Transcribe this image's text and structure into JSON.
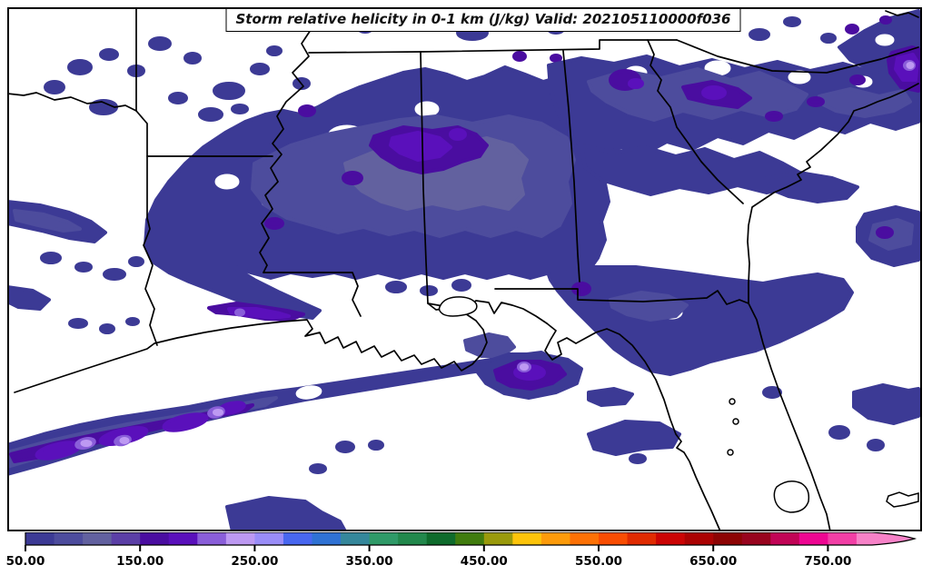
{
  "title": "Storm relative helicity in 0-1 km (J/kg) Valid: 202105110000f036",
  "colorbar": {
    "vmin": 50,
    "step": 25,
    "extend_max": true,
    "arrow_color": "#f782c8",
    "segments": [
      {
        "value": 50,
        "color": "#3c3a95"
      },
      {
        "value": 75,
        "color": "#4d4c9d"
      },
      {
        "value": 100,
        "color": "#62619f"
      },
      {
        "value": 125,
        "color": "#5b3fa6"
      },
      {
        "value": 150,
        "color": "#4a0da0"
      },
      {
        "value": 175,
        "color": "#5a10bb"
      },
      {
        "value": 200,
        "color": "#8a5ed9"
      },
      {
        "value": 225,
        "color": "#bd99f2"
      },
      {
        "value": 250,
        "color": "#9a8df8"
      },
      {
        "value": 275,
        "color": "#4867f0"
      },
      {
        "value": 300,
        "color": "#2f72d4"
      },
      {
        "value": 325,
        "color": "#35879b"
      },
      {
        "value": 350,
        "color": "#2f9a68"
      },
      {
        "value": 375,
        "color": "#22884c"
      },
      {
        "value": 400,
        "color": "#0e6b2c"
      },
      {
        "value": 425,
        "color": "#407c0e"
      },
      {
        "value": 450,
        "color": "#9a9a0c"
      },
      {
        "value": 475,
        "color": "#fdc40b"
      },
      {
        "value": 500,
        "color": "#fd9b0b"
      },
      {
        "value": 525,
        "color": "#fd7105"
      },
      {
        "value": 550,
        "color": "#f94d02"
      },
      {
        "value": 575,
        "color": "#e02b01"
      },
      {
        "value": 600,
        "color": "#cb0404"
      },
      {
        "value": 625,
        "color": "#ab0303"
      },
      {
        "value": 650,
        "color": "#8d0404"
      },
      {
        "value": 675,
        "color": "#98041e"
      },
      {
        "value": 700,
        "color": "#c10456"
      },
      {
        "value": 725,
        "color": "#ee0692"
      },
      {
        "value": 750,
        "color": "#f23fa6"
      }
    ],
    "ticks": [
      {
        "value": 50,
        "label": "50.00"
      },
      {
        "value": 150,
        "label": "150.00"
      },
      {
        "value": 250,
        "label": "250.00"
      },
      {
        "value": 350,
        "label": "350.00"
      },
      {
        "value": 450,
        "label": "450.00"
      },
      {
        "value": 550,
        "label": "550.00"
      },
      {
        "value": 650,
        "label": "650.00"
      },
      {
        "value": 750,
        "label": "750.00"
      }
    ]
  },
  "chart_data": {
    "type": "heatmap",
    "subtype": "filled_contour_weather_map",
    "title": "Storm relative helicity in 0-1 km (J/kg) Valid: 202105110000f036",
    "variable": "Storm relative helicity in 0-1 km",
    "units": "J/kg",
    "valid_time_label": "202105110000f036",
    "region": "Southeastern United States and northern Gulf of Mexico (TX, OK, AR, LA, MS, AL, GA, FL, TN, SC, NC visible)",
    "contour_levels_start": 50,
    "contour_interval": 25,
    "colorbar_tick_labels": [
      "50.00",
      "150.00",
      "250.00",
      "350.00",
      "450.00",
      "550.00",
      "650.00",
      "750.00"
    ],
    "legend_position": "bottom horizontal colorbar with right-pointing overflow arrow",
    "grid": false,
    "field_features": [
      {
        "area": "broad plume across northern Louisiana, Mississippi, Alabama into Georgia and the Carolinas",
        "approx_range_jkg": "50-125"
      },
      {
        "area": "northern Mississippi / northwest Alabama cores",
        "approx_range_jkg": "150-200"
      },
      {
        "area": "northern Georgia into western South Carolina cores",
        "approx_range_jkg": "150-200"
      },
      {
        "area": "northeast corner (western North Carolina) core",
        "approx_range_jkg": "150-250"
      },
      {
        "area": "offshore Gulf of Mexico streak southwest of Louisiana",
        "approx_range_jkg": "150-250"
      },
      {
        "area": "south-central Louisiana coastal streak",
        "approx_range_jkg": "150-200"
      },
      {
        "area": "southeast Louisiana / Mississippi delta cluster",
        "approx_range_jkg": "150-250"
      },
      {
        "area": "north Florida big-bend blob and scattered Atlantic blobs",
        "approx_range_jkg": "50-100"
      }
    ]
  }
}
